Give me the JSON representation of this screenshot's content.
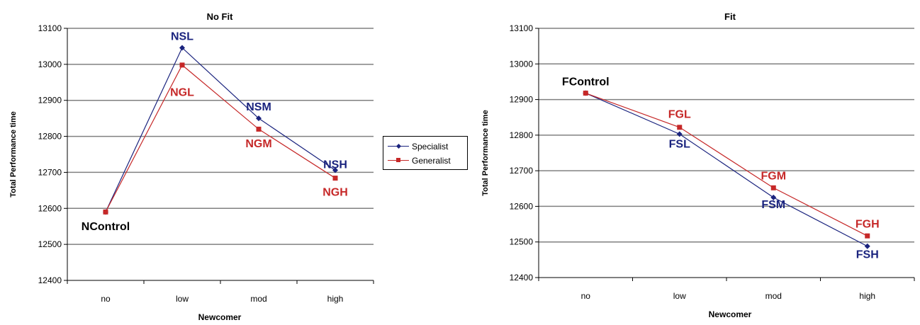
{
  "colors": {
    "specialist": "#1a237e",
    "generalist": "#c62828",
    "grid": "#808080",
    "text": "#000000"
  },
  "legend": {
    "items": [
      {
        "label": "Specialist",
        "color": "#1a237e",
        "marker": "diamond"
      },
      {
        "label": "Generalist",
        "color": "#c62828",
        "marker": "square"
      }
    ]
  },
  "chart_data": [
    {
      "type": "line",
      "title": "No Fit",
      "xlabel": "Newcomer",
      "ylabel": "Total Performance time",
      "categories": [
        "no",
        "low",
        "mod",
        "high"
      ],
      "ylim": [
        12400,
        13100
      ],
      "yticks": [
        12400,
        12500,
        12600,
        12700,
        12800,
        12900,
        13000,
        13100
      ],
      "grid": true,
      "series": [
        {
          "name": "Specialist",
          "values": [
            12590,
            13046,
            12850,
            12706
          ],
          "color": "#1a237e",
          "marker": "diamond"
        },
        {
          "name": "Generalist",
          "values": [
            12590,
            12998,
            12820,
            12684
          ],
          "color": "#c62828",
          "marker": "square"
        }
      ],
      "annotations": [
        {
          "text": "NControl",
          "x": "no",
          "y": 12540,
          "color": "#000000"
        },
        {
          "text": "NSL",
          "x": "low",
          "y": 13068,
          "color": "#1a237e"
        },
        {
          "text": "NGL",
          "x": "low",
          "y": 12912,
          "color": "#c62828"
        },
        {
          "text": "NSM",
          "x": "mod",
          "y": 12872,
          "color": "#1a237e"
        },
        {
          "text": "NGM",
          "x": "mod",
          "y": 12770,
          "color": "#c62828"
        },
        {
          "text": "NSH",
          "x": "high",
          "y": 12712,
          "color": "#1a237e"
        },
        {
          "text": "NGH",
          "x": "high",
          "y": 12635,
          "color": "#c62828"
        }
      ]
    },
    {
      "type": "line",
      "title": "Fit",
      "xlabel": "Newcomer",
      "ylabel": "Total Performance time",
      "categories": [
        "no",
        "low",
        "mod",
        "high"
      ],
      "ylim": [
        12400,
        13100
      ],
      "yticks": [
        12400,
        12500,
        12600,
        12700,
        12800,
        12900,
        13000,
        13100
      ],
      "grid": true,
      "series": [
        {
          "name": "Specialist",
          "values": [
            12918,
            12803,
            12625,
            12488
          ],
          "color": "#1a237e",
          "marker": "diamond"
        },
        {
          "name": "Generalist",
          "values": [
            12918,
            12822,
            12652,
            12517
          ],
          "color": "#c62828",
          "marker": "square"
        }
      ],
      "annotations": [
        {
          "text": "FControl",
          "x": "no",
          "y": 12940,
          "color": "#000000"
        },
        {
          "text": "FGL",
          "x": "low",
          "y": 12848,
          "color": "#c62828"
        },
        {
          "text": "FSL",
          "x": "low",
          "y": 12765,
          "color": "#1a237e"
        },
        {
          "text": "FGM",
          "x": "mod",
          "y": 12675,
          "color": "#c62828"
        },
        {
          "text": "FSM",
          "x": "mod",
          "y": 12595,
          "color": "#1a237e"
        },
        {
          "text": "FGH",
          "x": "high",
          "y": 12540,
          "color": "#c62828"
        },
        {
          "text": "FSH",
          "x": "high",
          "y": 12455,
          "color": "#1a237e"
        }
      ]
    }
  ]
}
